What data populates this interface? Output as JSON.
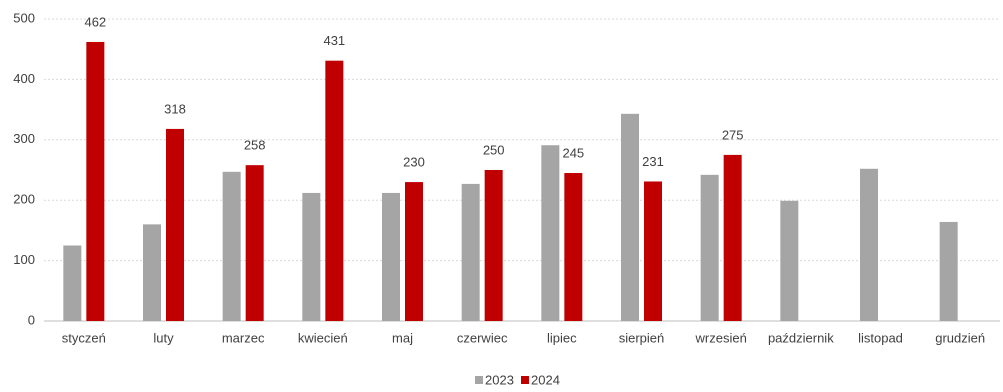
{
  "chart_data": {
    "type": "bar",
    "categories": [
      "styczeń",
      "luty",
      "marzec",
      "kwiecień",
      "maj",
      "czerwiec",
      "lipiec",
      "sierpień",
      "wrzesień",
      "październik",
      "listopad",
      "grudzień"
    ],
    "series": [
      {
        "name": "2023",
        "color": "#a5a5a5",
        "data_labels": false,
        "values": [
          125,
          160,
          247,
          212,
          212,
          227,
          291,
          343,
          242,
          199,
          252,
          164
        ]
      },
      {
        "name": "2024",
        "color": "#c00000",
        "data_labels": true,
        "values": [
          462,
          318,
          258,
          431,
          230,
          250,
          245,
          231,
          275,
          null,
          null,
          null
        ]
      }
    ],
    "ylim": [
      0,
      500
    ],
    "yticks": [
      0,
      100,
      200,
      300,
      400,
      500
    ],
    "grid": true,
    "legend": "bottom"
  }
}
